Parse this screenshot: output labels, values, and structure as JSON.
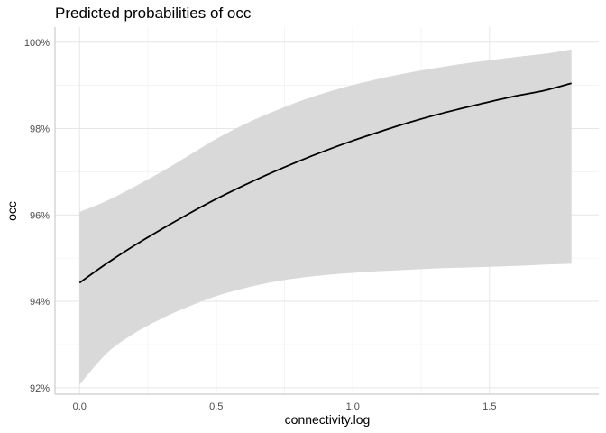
{
  "chart_data": {
    "type": "line",
    "title": "Predicted probabilities of occ",
    "xlabel": "connectivity.log",
    "ylabel": "occ",
    "xlim": [
      -0.09,
      1.9
    ],
    "ylim": [
      91.85,
      100.35
    ],
    "x_ticks": [
      0.0,
      0.5,
      1.0,
      1.5
    ],
    "x_tick_labels": [
      "0.0",
      "0.5",
      "1.0",
      "1.5"
    ],
    "y_ticks": [
      92,
      94,
      96,
      98,
      100
    ],
    "y_tick_labels": [
      "92%",
      "94%",
      "96%",
      "98%",
      "100%"
    ],
    "grid": true,
    "legend": "none",
    "series": [
      {
        "x": [
          0.0,
          0.1,
          0.2,
          0.3,
          0.4,
          0.5,
          0.6,
          0.7,
          0.8,
          0.9,
          1.0,
          1.1,
          1.2,
          1.3,
          1.4,
          1.5,
          1.6,
          1.7,
          1.8
        ],
        "y": [
          94.43,
          94.88,
          95.29,
          95.67,
          96.03,
          96.37,
          96.68,
          96.97,
          97.24,
          97.49,
          97.72,
          97.93,
          98.13,
          98.31,
          98.47,
          98.62,
          98.76,
          98.88,
          99.05
        ],
        "lower": [
          92.07,
          92.8,
          93.26,
          93.6,
          93.88,
          94.12,
          94.3,
          94.44,
          94.54,
          94.61,
          94.66,
          94.7,
          94.73,
          94.76,
          94.78,
          94.8,
          94.82,
          94.85,
          94.87
        ],
        "upper": [
          96.07,
          96.33,
          96.65,
          97.0,
          97.38,
          97.76,
          98.09,
          98.37,
          98.62,
          98.83,
          99.01,
          99.16,
          99.29,
          99.4,
          99.5,
          99.58,
          99.66,
          99.73,
          99.83
        ],
        "color": "#000000",
        "band_color": "#d9d9d9"
      }
    ]
  }
}
